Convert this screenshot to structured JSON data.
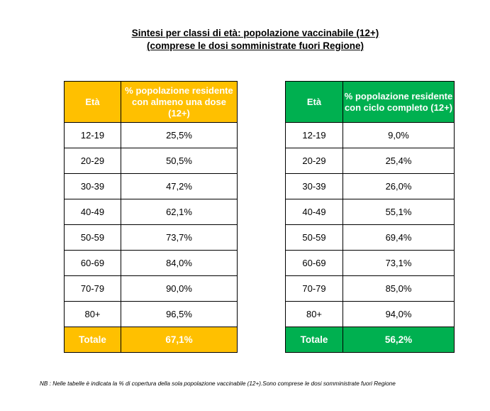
{
  "title": {
    "line1": "Sintesi per classi di età: popolazione vaccinabile (12+)",
    "line2": "(comprese le dosi somministrate fuori Regione)"
  },
  "colors": {
    "orange": "#ffc000",
    "green": "#00b050"
  },
  "table_left": {
    "header_age": "Età",
    "header_value": "% popolazione residente con almeno una dose (12+)",
    "rows": [
      {
        "age": "12-19",
        "value": "25,5%"
      },
      {
        "age": "20-29",
        "value": "50,5%"
      },
      {
        "age": "30-39",
        "value": "47,2%"
      },
      {
        "age": "40-49",
        "value": "62,1%"
      },
      {
        "age": "50-59",
        "value": "73,7%"
      },
      {
        "age": "60-69",
        "value": "84,0%"
      },
      {
        "age": "70-79",
        "value": "90,0%"
      },
      {
        "age": "80+",
        "value": "96,5%"
      }
    ],
    "total_label": "Totale",
    "total_value": "67,1%"
  },
  "table_right": {
    "header_age": "Età",
    "header_value": "% popolazione residente con ciclo completo (12+)",
    "rows": [
      {
        "age": "12-19",
        "value": "9,0%"
      },
      {
        "age": "20-29",
        "value": "25,4%"
      },
      {
        "age": "30-39",
        "value": "26,0%"
      },
      {
        "age": "40-49",
        "value": "55,1%"
      },
      {
        "age": "50-59",
        "value": "69,4%"
      },
      {
        "age": "60-69",
        "value": "73,1%"
      },
      {
        "age": "70-79",
        "value": "85,0%"
      },
      {
        "age": "80+",
        "value": "94,0%"
      }
    ],
    "total_label": "Totale",
    "total_value": "56,2%"
  },
  "note": "NB : Nelle tabelle è indicata la % di copertura della sola popolazione vaccinabile (12+).Sono comprese le dosi somministrate fuori Regione"
}
